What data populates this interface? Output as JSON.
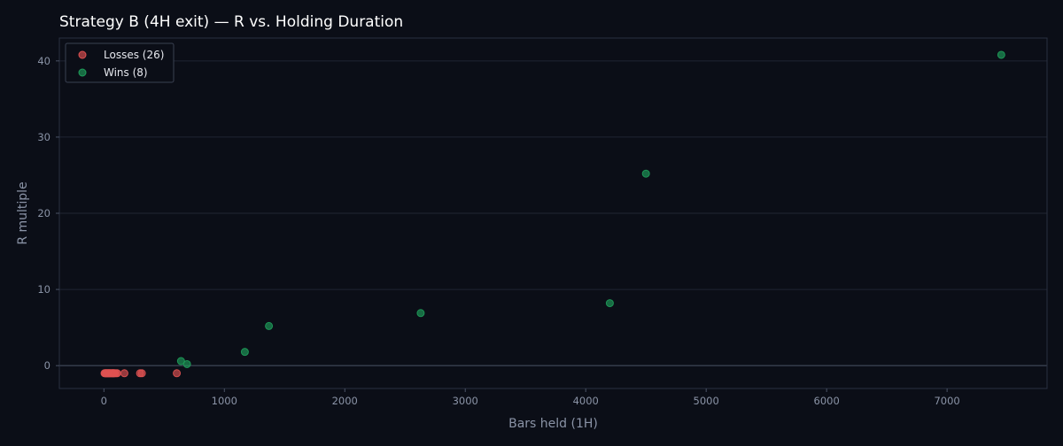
{
  "chart_data": {
    "type": "scatter",
    "title": "Strategy B (4H exit) — R vs. Holding Duration",
    "xlabel": "Bars held (1H)",
    "ylabel": "R multiple",
    "xlim": [
      -370,
      7830
    ],
    "ylim": [
      -3,
      43
    ],
    "xticks": [
      0,
      1000,
      2000,
      3000,
      4000,
      5000,
      6000,
      7000
    ],
    "yticks": [
      0,
      10,
      20,
      30,
      40
    ],
    "grid": true,
    "legend_position": "top-left",
    "series": [
      {
        "name": "Losses (26)",
        "color": "#e05252",
        "points": [
          [
            5,
            -1
          ],
          [
            10,
            -1
          ],
          [
            14,
            -1
          ],
          [
            18,
            -1
          ],
          [
            22,
            -1
          ],
          [
            26,
            -1
          ],
          [
            30,
            -1
          ],
          [
            34,
            -1
          ],
          [
            38,
            -1
          ],
          [
            42,
            -1
          ],
          [
            46,
            -1
          ],
          [
            50,
            -1
          ],
          [
            55,
            -1
          ],
          [
            60,
            -1
          ],
          [
            65,
            -1
          ],
          [
            70,
            -1
          ],
          [
            75,
            -1
          ],
          [
            80,
            -1
          ],
          [
            85,
            -1
          ],
          [
            90,
            -1
          ],
          [
            100,
            -1
          ],
          [
            110,
            -1
          ],
          [
            170,
            -1
          ],
          [
            300,
            -1
          ],
          [
            315,
            -1
          ],
          [
            605,
            -1
          ]
        ]
      },
      {
        "name": "Wins (8)",
        "color": "#1f9e5a",
        "points": [
          [
            640,
            0.6
          ],
          [
            690,
            0.2
          ],
          [
            1170,
            1.8
          ],
          [
            1370,
            5.2
          ],
          [
            2630,
            6.9
          ],
          [
            4200,
            8.2
          ],
          [
            4500,
            25.2
          ],
          [
            7450,
            40.8
          ]
        ]
      }
    ]
  }
}
